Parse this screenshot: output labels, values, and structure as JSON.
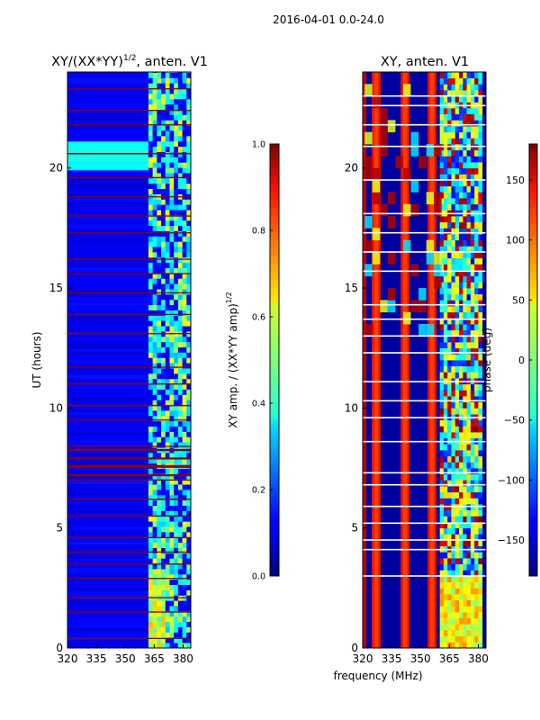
{
  "figure": {
    "suptitle": "2016-04-01 0.0-24.0",
    "xlabel": "frequency (MHz)"
  },
  "chart_data": [
    {
      "type": "heatmap",
      "title_main": "XY/(XX*YY)",
      "title_sup": "1/2",
      "title_tail": ", anten. V1",
      "ylabel": "UT (hours)",
      "xlim": [
        320,
        384
      ],
      "ylim": [
        0,
        24
      ],
      "x_ticks": [
        320,
        335,
        350,
        365,
        380
      ],
      "y_ticks": [
        0,
        5,
        10,
        15,
        20
      ],
      "colorbar": {
        "label_main": "XY amp. / (XX*YY amp)",
        "label_sup": "1/2",
        "min": 0.0,
        "max": 1.0,
        "ticks": [
          "0.0",
          "0.2",
          "0.4",
          "0.6",
          "0.8",
          "1.0"
        ],
        "colormap": "jet"
      },
      "flagged_hours": [
        0.4,
        1.5,
        2.1,
        2.9,
        3.5,
        4.0,
        4.6,
        5.5,
        6.2,
        7.0,
        7.6,
        8.4,
        9.5,
        10.1,
        11.0,
        11.7,
        13.1,
        13.9,
        14.8,
        15.6,
        16.2,
        17.3,
        18.0,
        18.8,
        19.6,
        20.6,
        21.8,
        22.4,
        23.3
      ],
      "rfi_band_mhz": [
        362,
        382
      ],
      "features": [
        {
          "label": "elevated amplitude block",
          "hours": [
            19.8,
            21.0
          ],
          "level": 0.35
        },
        {
          "label": "flagged broadband rows",
          "hours": [
            7.2,
            8.6
          ],
          "level": 1.0
        }
      ]
    },
    {
      "type": "heatmap",
      "title_main": "XY, anten. V1",
      "ylabel": "",
      "xlim": [
        320,
        384
      ],
      "ylim": [
        0,
        24
      ],
      "x_ticks": [
        320,
        335,
        350,
        365,
        380
      ],
      "y_ticks": [
        0,
        5,
        10,
        15,
        20
      ],
      "colorbar": {
        "label_main": "phase (deg)",
        "min": -180,
        "max": 180,
        "ticks": [
          "150",
          "100",
          "50",
          "0",
          "−50",
          "−100",
          "−150"
        ],
        "colormap": "jet"
      },
      "red_stripes_mhz": [
        327,
        342,
        356,
        375
      ],
      "white_rows_hours": [
        3.0,
        4.1,
        4.5,
        5.2,
        5.9,
        6.8,
        7.3,
        8.6,
        9.6,
        10.3,
        11.1,
        12.3,
        13.0,
        13.7,
        14.3,
        15.7,
        16.5,
        17.3,
        18.1,
        19.5,
        20.9,
        21.8,
        22.6,
        23.0
      ],
      "mixed_band_mhz": [
        360,
        382
      ]
    }
  ]
}
